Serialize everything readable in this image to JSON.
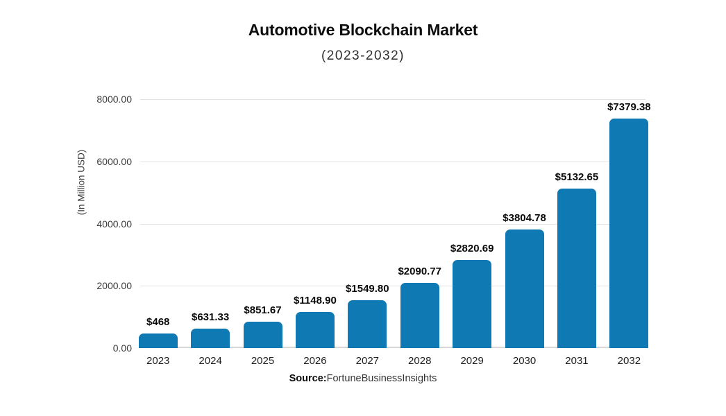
{
  "header": {
    "title": "Automotive Blockchain Market",
    "subtitle": "(2023-2032)"
  },
  "chart_data": {
    "type": "bar",
    "title": "Automotive Blockchain Market",
    "subtitle": "(2023-2032)",
    "categories": [
      "2023",
      "2024",
      "2025",
      "2026",
      "2027",
      "2028",
      "2029",
      "2030",
      "2031",
      "2032"
    ],
    "values": [
      468,
      631.33,
      851.67,
      1148.9,
      1549.8,
      2090.77,
      2820.69,
      3804.78,
      5132.65,
      7379.38
    ],
    "labels": [
      "$468",
      "$631.33",
      "$851.67",
      "$1148.90",
      "$1549.80",
      "$2090.77",
      "$2820.69",
      "$3804.78",
      "$5132.65",
      "$7379.38"
    ],
    "xlabel": "",
    "ylabel": "(In Million USD)",
    "ylim": [
      0,
      8000
    ],
    "yticks": [
      "8000.00",
      "6000.00",
      "4000.00",
      "2000.00",
      "0.00"
    ],
    "grid": true,
    "legend_position": "none",
    "bar_color": "#0e79b2",
    "gridline_color": "#e3e3e3"
  },
  "footer": {
    "source_label": "Source:",
    "source_value": "FortuneBusinessInsights"
  }
}
